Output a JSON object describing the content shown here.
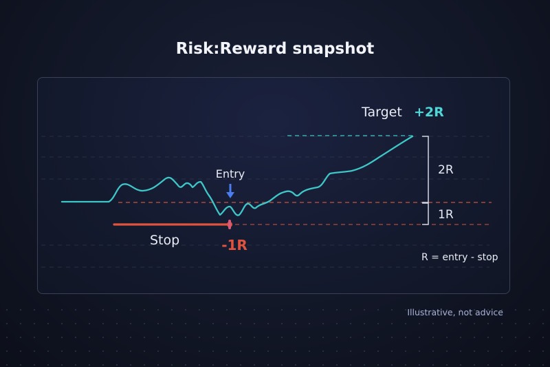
{
  "title": "Risk:Reward snapshot",
  "labels": {
    "target": "Target",
    "target_r": "+2R",
    "entry": "Entry",
    "stop": "Stop",
    "stop_r": "-1R",
    "two_r": "2R",
    "one_r": "1R",
    "formula": "R = entry - stop"
  },
  "footnote": "Illustrative, not advice",
  "colors": {
    "price": "#3fc6c6",
    "stop": "#e0533f",
    "entry_arrow": "#4a7df0",
    "target_text": "#4fd6d6",
    "text": "#e9ecf5",
    "bracket": "#d4d8e4"
  }
}
